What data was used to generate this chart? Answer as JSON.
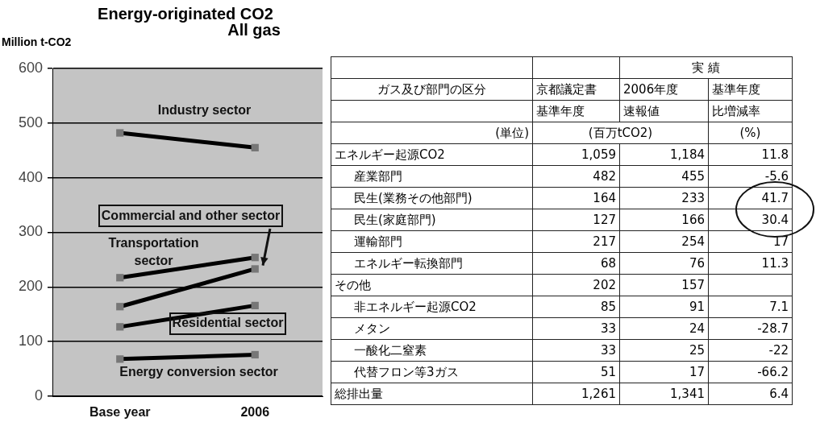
{
  "chart_data": [
    {
      "type": "line",
      "title": "Energy-originated CO2",
      "ylabel": "Million t-CO2",
      "categories": [
        "Base year",
        "2006"
      ],
      "series": [
        {
          "name": "Industry sector",
          "color": "#000000",
          "values": [
            482,
            455
          ]
        },
        {
          "name": "Commercial and other sector",
          "color": "#000000",
          "values": [
            164,
            233
          ]
        },
        {
          "name": "Transportation sector",
          "color": "#000000",
          "values": [
            217,
            254
          ]
        },
        {
          "name": "Residential sector",
          "color": "#000000",
          "values": [
            127,
            166
          ]
        },
        {
          "name": "Energy conversion sector",
          "color": "#000000",
          "values": [
            68,
            76
          ]
        }
      ],
      "ylim": [
        0,
        600
      ],
      "yticks": [
        0,
        100,
        200,
        300,
        400,
        500,
        600
      ],
      "grid": "y",
      "marker": "square",
      "line_style": "solid"
    },
    {
      "type": "other",
      "title": "All gas",
      "annotations": [
        "実 績",
        "ガス及び部門の区分",
        "京都議定書",
        "2006年度",
        "基準年度",
        "基準年度",
        "速報値",
        "比増減率",
        "(単位)",
        "(百万tCO2)",
        "(%)",
        "エネルギー起源CO2",
        "1,059",
        "1,184",
        "11.8",
        "産業部門",
        "482",
        "455",
        "-5.6",
        "民生(業務その他部門)",
        "164",
        "233",
        "41.7",
        "民生(家庭部門)",
        "127",
        "166",
        "30.4",
        "運輸部門",
        "217",
        "254",
        "17",
        "エネルギー転換部門",
        "68",
        "76",
        "11.3",
        "その他",
        "202",
        "157",
        "非エネルギー起源CO2",
        "85",
        "91",
        "7.1",
        "メタン",
        "33",
        "24",
        "-28.7",
        "一酸化二窒素",
        "33",
        "25",
        "-22",
        "代替フロン等3ガス",
        "51",
        "17",
        "-66.2",
        "総排出量",
        "1,261",
        "1,341",
        "6.4"
      ]
    }
  ]
}
